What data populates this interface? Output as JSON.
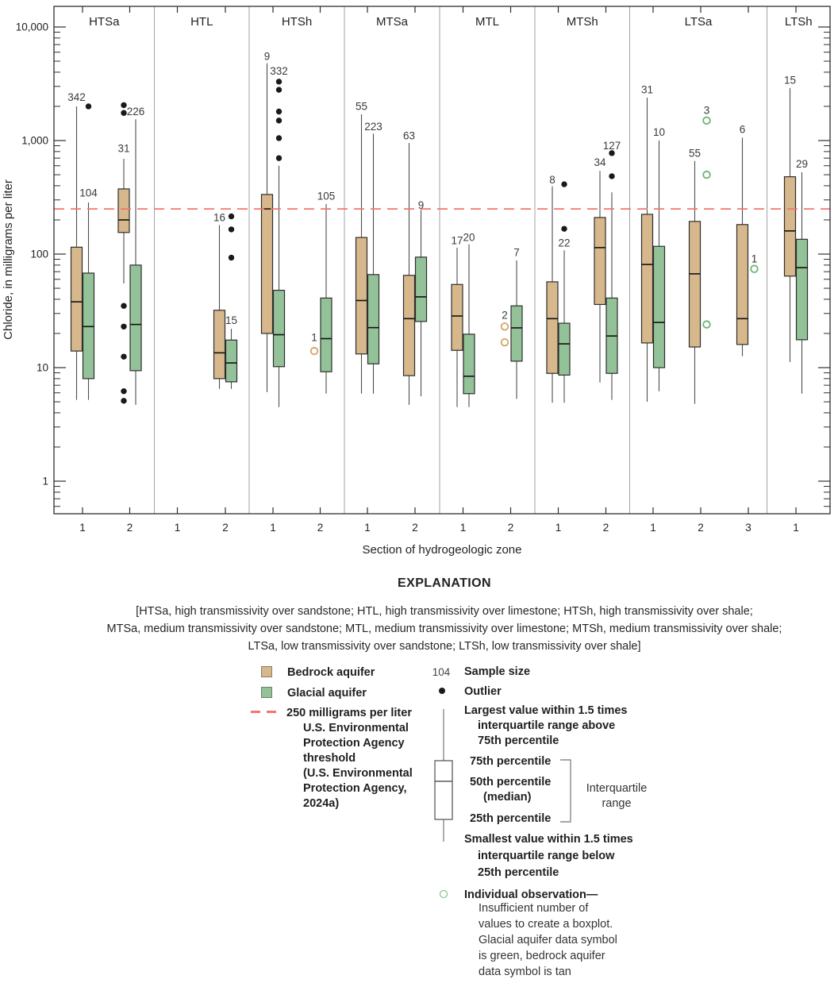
{
  "page": {
    "explanation_title": "EXPLANATION",
    "note_lines": [
      "[HTSa, high transmissivity over sandstone; HTL, high transmissivity over limestone; HTSh, high transmissivity over shale;",
      "MTSa, medium transmissivity over sandstone; MTL, medium transmissivity over limestone; MTSh, medium transmissivity over shale;",
      "LTSa, low transmissivity over sandstone; LTSh, low transmissivity over shale]"
    ]
  },
  "legend": {
    "bedrock_label": "Bedrock aquifer",
    "glacial_label": "Glacial aquifer",
    "threshold_lines": [
      "250 milligrams per liter",
      "U.S. Environmental",
      "Protection Agency",
      "threshold",
      "(U.S. Environmental",
      "Protection Agency,",
      "2024a)"
    ],
    "sample_size_symbol": "104",
    "sample_size_label": "Sample size",
    "outlier_label": "Outlier",
    "largest_lines": [
      "Largest value within 1.5 times",
      "interquartile range above",
      "75th percentile"
    ],
    "p75_label": "75th percentile",
    "p50_lines": [
      "50th percentile",
      "(median)"
    ],
    "p25_label": "25th percentile",
    "iqr_lines": [
      "Interquartile",
      "range"
    ],
    "smallest_lines": [
      "Smallest value within 1.5 times",
      "interquartile range below",
      "25th percentile"
    ],
    "individual_title": "Individual observation—",
    "individual_lines": [
      "Insufficient number of",
      "values to create a boxplot.",
      "Glacial aquifer data symbol",
      "is green, bedrock aquifer",
      "data symbol is tan"
    ]
  },
  "colors": {
    "bedrock": "#d7b78c",
    "glacial": "#93c298",
    "bedrock_circle": "#d2a563",
    "glacial_circle": "#68b56f",
    "threshold": "#f4756e",
    "outlier": "#1a1a1a",
    "whisker": "#4f4f4f",
    "box_border": "#2e2e2e",
    "axis": "#2e2e2e",
    "separator": "#a2a2a2",
    "text": "#222222"
  },
  "chart_data": {
    "type": "boxplot",
    "title": "",
    "ylabel": "Chloride, in milligrams per liter",
    "xlabel": "Section of hydrogeologic zone",
    "yscale": "log",
    "ylim": [
      0.55,
      15000
    ],
    "yticks": [
      {
        "v": 1,
        "label": "1"
      },
      {
        "v": 10,
        "label": "10"
      },
      {
        "v": 100,
        "label": "100"
      },
      {
        "v": 1000,
        "label": "1,000"
      },
      {
        "v": 10000,
        "label": "10,000"
      }
    ],
    "threshold": {
      "value": 250,
      "label": "250 milligrams per liter U.S. Environmental Protection Agency threshold"
    },
    "series_names": {
      "bedrock": "Bedrock aquifer",
      "glacial": "Glacial aquifer"
    },
    "zones": [
      {
        "name": "HTSa",
        "sections": [
          {
            "label": "1",
            "bedrock": {
              "n": 342,
              "n_at": 2400,
              "whisker_high": 2000,
              "q3": 115,
              "median": 38,
              "q1": 14,
              "whisker_low": 5.2
            },
            "glacial": {
              "n": 104,
              "n_at": 345,
              "whisker_high": 285,
              "q3": 68,
              "median": 23,
              "q1": 8,
              "whisker_low": 5.2,
              "outliers": [
                2000
              ]
            }
          },
          {
            "label": "2",
            "bedrock": {
              "n": 31,
              "n_at": 850,
              "whisker_high": 690,
              "q3": 375,
              "median": 200,
              "q1": 155,
              "whisker_low": 55,
              "outliers": [
                2050,
                1750,
                35,
                23,
                12.5,
                6.2,
                5.1
              ]
            },
            "glacial": {
              "n": 226,
              "n_at": 1800,
              "whisker_high": 1540,
              "q3": 80,
              "median": 24,
              "q1": 9.4,
              "whisker_low": 4.7
            }
          }
        ]
      },
      {
        "name": "HTL",
        "sections": [
          {
            "label": "1"
          },
          {
            "label": "2",
            "bedrock": {
              "n": 16,
              "n_at": 210,
              "whisker_high": 180,
              "q3": 32,
              "median": 13.5,
              "q1": 8,
              "whisker_low": 6.5
            },
            "glacial": {
              "n": 15,
              "n_at": 26,
              "whisker_high": 22,
              "q3": 17.5,
              "median": 11,
              "q1": 7.5,
              "whisker_low": 6.5,
              "outliers": [
                215,
                165,
                93
              ]
            }
          }
        ]
      },
      {
        "name": "HTSh",
        "sections": [
          {
            "label": "1",
            "bedrock": {
              "n": 9,
              "n_at": 5500,
              "whisker_high": 4800,
              "q3": 335,
              "median": 250,
              "q1": 20,
              "whisker_low": 6.1
            },
            "glacial": {
              "n": 332,
              "n_at": 4100,
              "whisker_high": 600,
              "q3": 48,
              "median": 19.5,
              "q1": 10.2,
              "whisker_low": 4.5,
              "outliers": [
                3300,
                2800,
                1800,
                1500,
                1050,
                700
              ]
            }
          },
          {
            "label": "2",
            "bedrock": {
              "n": 1,
              "n_at": 18.5,
              "values": [
                14
              ]
            },
            "glacial": {
              "n": 105,
              "n_at": 325,
              "whisker_high": 276,
              "q3": 41,
              "median": 18,
              "q1": 9.2,
              "whisker_low": 5.9
            }
          }
        ]
      },
      {
        "name": "MTSa",
        "sections": [
          {
            "label": "1",
            "bedrock": {
              "n": 55,
              "n_at": 2000,
              "whisker_high": 1700,
              "q3": 140,
              "median": 39,
              "q1": 13.2,
              "whisker_low": 5.9
            },
            "glacial": {
              "n": 223,
              "n_at": 1330,
              "whisker_high": 1150,
              "q3": 66,
              "median": 22.5,
              "q1": 10.8,
              "whisker_low": 5.9
            }
          },
          {
            "label": "2",
            "bedrock": {
              "n": 63,
              "n_at": 1100,
              "whisker_high": 950,
              "q3": 65,
              "median": 27,
              "q1": 8.5,
              "whisker_low": 4.7
            },
            "glacial": {
              "n": 9,
              "n_at": 270,
              "whisker_high": 245,
              "q3": 94,
              "median": 42,
              "q1": 25.5,
              "whisker_low": 5.6
            }
          }
        ]
      },
      {
        "name": "MTL",
        "sections": [
          {
            "label": "1",
            "bedrock": {
              "n": 17,
              "n_at": 131,
              "whisker_high": 114,
              "q3": 54,
              "median": 28.5,
              "q1": 14.2,
              "whisker_low": 4.5
            },
            "glacial": {
              "n": 20,
              "n_at": 140,
              "whisker_high": 122,
              "q3": 19.7,
              "median": 8.4,
              "q1": 5.9,
              "whisker_low": 4.5
            }
          },
          {
            "label": "2",
            "bedrock": {
              "n": 2,
              "n_at": 29,
              "values": [
                23,
                16.7
              ]
            },
            "glacial": {
              "n": 7,
              "n_at": 103,
              "whisker_high": 88,
              "q3": 35,
              "median": 22.4,
              "q1": 11.4,
              "whisker_low": 5.3
            }
          }
        ]
      },
      {
        "name": "MTSh",
        "sections": [
          {
            "label": "1",
            "bedrock": {
              "n": 8,
              "n_at": 450,
              "whisker_high": 395,
              "q3": 57,
              "median": 27,
              "q1": 8.9,
              "whisker_low": 4.9
            },
            "glacial": {
              "n": 22,
              "n_at": 125,
              "whisker_high": 108,
              "q3": 24.6,
              "median": 16.2,
              "q1": 8.6,
              "whisker_low": 4.9,
              "outliers": [
                412,
                167
              ]
            }
          },
          {
            "label": "2",
            "bedrock": {
              "n": 34,
              "n_at": 640,
              "whisker_high": 540,
              "q3": 210,
              "median": 114,
              "q1": 36,
              "whisker_low": 7.4
            },
            "glacial": {
              "n": 127,
              "n_at": 900,
              "whisker_high": 350,
              "q3": 41,
              "median": 19,
              "q1": 8.9,
              "whisker_low": 5.2,
              "outliers": [
                775,
                485
              ]
            }
          }
        ]
      },
      {
        "name": "LTSa",
        "sections": [
          {
            "label": "1",
            "bedrock": {
              "n": 31,
              "n_at": 2800,
              "whisker_high": 2380,
              "q3": 224,
              "median": 81,
              "q1": 16.5,
              "whisker_low": 5.0
            },
            "glacial": {
              "n": 10,
              "n_at": 1180,
              "whisker_high": 1000,
              "q3": 117,
              "median": 25,
              "q1": 10,
              "whisker_low": 6.2
            }
          },
          {
            "label": "2",
            "bedrock": {
              "n": 55,
              "n_at": 775,
              "whisker_high": 660,
              "q3": 194,
              "median": 67,
              "q1": 15.2,
              "whisker_low": 4.8
            },
            "glacial": {
              "n": 3,
              "n_at": 1850,
              "values": [
                1500,
                500,
                24
              ]
            }
          },
          {
            "label": "3",
            "bedrock": {
              "n": 6,
              "n_at": 1250,
              "whisker_high": 1060,
              "q3": 182,
              "median": 27,
              "q1": 16,
              "whisker_low": 12.6
            },
            "glacial": {
              "n": 1,
              "n_at": 91,
              "values": [
                74
              ]
            }
          }
        ]
      },
      {
        "name": "LTSh",
        "sections": [
          {
            "label": "1",
            "bedrock": {
              "n": 15,
              "n_at": 3400,
              "whisker_high": 2900,
              "q3": 480,
              "median": 160,
              "q1": 64,
              "whisker_low": 11.2
            },
            "glacial": {
              "n": 29,
              "n_at": 620,
              "whisker_high": 525,
              "q3": 135,
              "median": 76,
              "q1": 17.6,
              "whisker_low": 5.9
            }
          }
        ]
      }
    ]
  }
}
